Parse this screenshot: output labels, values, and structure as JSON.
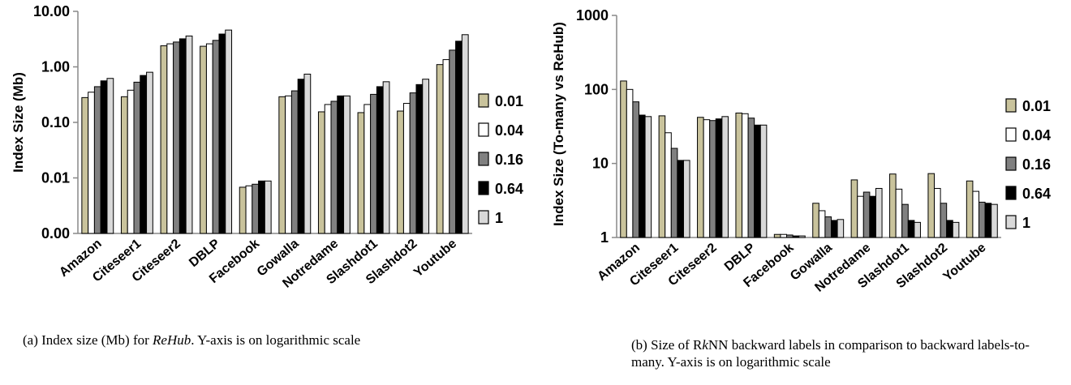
{
  "legend_colors": [
    "#c9c39c",
    "#ffffff",
    "#808080",
    "#000000",
    "#d9d9d9"
  ],
  "chart_data": [
    {
      "type": "bar",
      "panel": "a",
      "caption": "(a) Index size (Mb) for ReHub. Y-axis is on logarithmic scale",
      "caption_parts": [
        "(a) Index size (Mb) for ",
        "ReHub",
        ". Y-axis is on logarithmic scale"
      ],
      "ylabel": "Index Size (Mb)",
      "yscale": "log",
      "ylim": [
        0.001,
        10
      ],
      "yticks": [
        0.001,
        0.01,
        0.1,
        1,
        10
      ],
      "ytick_labels": [
        "0.00",
        "0.01",
        "0.10",
        "1.00",
        "10.00"
      ],
      "grid": false,
      "legend_position": "right",
      "categories": [
        "Amazon",
        "Citeseer1",
        "Citeseer2",
        "DBLP",
        "Facebook",
        "Gowalla",
        "Notredame",
        "Slashdot1",
        "Slashdot2",
        "Youtube"
      ],
      "series": [
        {
          "name": "0.01",
          "values": [
            0.28,
            0.29,
            2.4,
            2.35,
            0.0068,
            0.29,
            0.155,
            0.15,
            0.16,
            1.1
          ]
        },
        {
          "name": "0.04",
          "values": [
            0.35,
            0.38,
            2.6,
            2.6,
            0.0072,
            0.3,
            0.21,
            0.21,
            0.22,
            1.35
          ]
        },
        {
          "name": "0.16",
          "values": [
            0.44,
            0.53,
            2.8,
            3.0,
            0.0077,
            0.37,
            0.24,
            0.32,
            0.34,
            2.0
          ]
        },
        {
          "name": "0.64",
          "values": [
            0.56,
            0.7,
            3.2,
            3.9,
            0.0088,
            0.6,
            0.3,
            0.44,
            0.48,
            2.9
          ]
        },
        {
          "name": "1",
          "values": [
            0.62,
            0.8,
            3.6,
            4.6,
            0.0088,
            0.74,
            0.3,
            0.54,
            0.6,
            3.8
          ]
        }
      ]
    },
    {
      "type": "bar",
      "panel": "b",
      "caption": "(b) Size of RkNN backward labels in comparison to backward labels-to-many. Y-axis is on logarithmic scale",
      "caption_parts": [
        "(b) Size of R",
        "k",
        "NN backward labels in comparison to backward labels-to-many. Y-axis is on logarithmic scale"
      ],
      "ylabel": "Index Size (To-many vs ReHub)",
      "yscale": "log",
      "ylim": [
        1,
        1000
      ],
      "yticks": [
        1,
        10,
        100,
        1000
      ],
      "ytick_labels": [
        "1",
        "10",
        "100",
        "1000"
      ],
      "grid": false,
      "legend_position": "right",
      "categories": [
        "Amazon",
        "Citeseer1",
        "Citeseer2",
        "DBLP",
        "Facebook",
        "Gowalla",
        "Notredame",
        "Slashdot1",
        "Slashdot2",
        "Youtube"
      ],
      "series": [
        {
          "name": "0.01",
          "values": [
            130,
            44,
            42,
            48,
            1.1,
            2.9,
            6.0,
            7.2,
            7.3,
            5.8
          ]
        },
        {
          "name": "0.04",
          "values": [
            100,
            26,
            39,
            47,
            1.1,
            2.3,
            3.6,
            4.5,
            4.6,
            4.2
          ]
        },
        {
          "name": "0.16",
          "values": [
            68,
            16,
            38,
            41,
            1.08,
            1.9,
            4.1,
            2.8,
            2.9,
            3.0
          ]
        },
        {
          "name": "0.64",
          "values": [
            45,
            11,
            40,
            33,
            1.05,
            1.7,
            3.6,
            1.7,
            1.7,
            2.9
          ]
        },
        {
          "name": "1",
          "values": [
            43,
            11,
            43,
            33,
            1.05,
            1.75,
            4.6,
            1.6,
            1.6,
            2.8
          ]
        }
      ]
    }
  ]
}
